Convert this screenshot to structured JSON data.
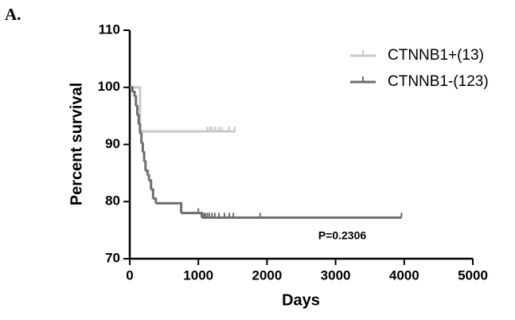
{
  "chart_data": {
    "type": "survival",
    "panel_label": "A.",
    "xlabel": "Days",
    "ylabel": "Percent survival",
    "xlim": [
      0,
      5000
    ],
    "xticks": [
      0,
      1000,
      2000,
      3000,
      4000,
      5000
    ],
    "ylim": [
      70,
      110
    ],
    "yticks": [
      70,
      80,
      90,
      100,
      110
    ],
    "legend": "upper right",
    "annotation": "P=0.2306",
    "series": [
      {
        "name": "CTNNB1+(13)",
        "color": "#c8c8c8",
        "x": [
          0,
          150,
          1540
        ],
        "values": [
          100,
          92.3,
          92.3
        ],
        "censored_x": [
          1130,
          1170,
          1200,
          1250,
          1300,
          1340,
          1450,
          1530
        ],
        "censored_values": [
          92.3,
          92.3,
          92.3,
          92.3,
          92.3,
          92.3,
          92.3,
          92.3
        ]
      },
      {
        "name": "CTNNB1-(123)",
        "color": "#6e6e6e",
        "x": [
          0,
          40,
          70,
          90,
          110,
          130,
          150,
          170,
          190,
          210,
          230,
          260,
          280,
          310,
          340,
          380,
          750,
          1050,
          3960
        ],
        "values": [
          100,
          99.2,
          98.4,
          96.7,
          95.1,
          93.5,
          91.9,
          90.2,
          88.6,
          87.0,
          85.4,
          84.6,
          83.7,
          82.1,
          80.5,
          79.7,
          78.0,
          77.2,
          77.2
        ],
        "censored_x": [
          1000,
          1080,
          1100,
          1130,
          1160,
          1200,
          1240,
          1300,
          1380,
          1450,
          1510,
          1900,
          3960
        ],
        "censored_values": [
          78.0,
          77.2,
          77.2,
          77.2,
          77.2,
          77.2,
          77.2,
          77.2,
          77.2,
          77.2,
          77.2,
          77.2,
          77.2
        ]
      }
    ]
  }
}
